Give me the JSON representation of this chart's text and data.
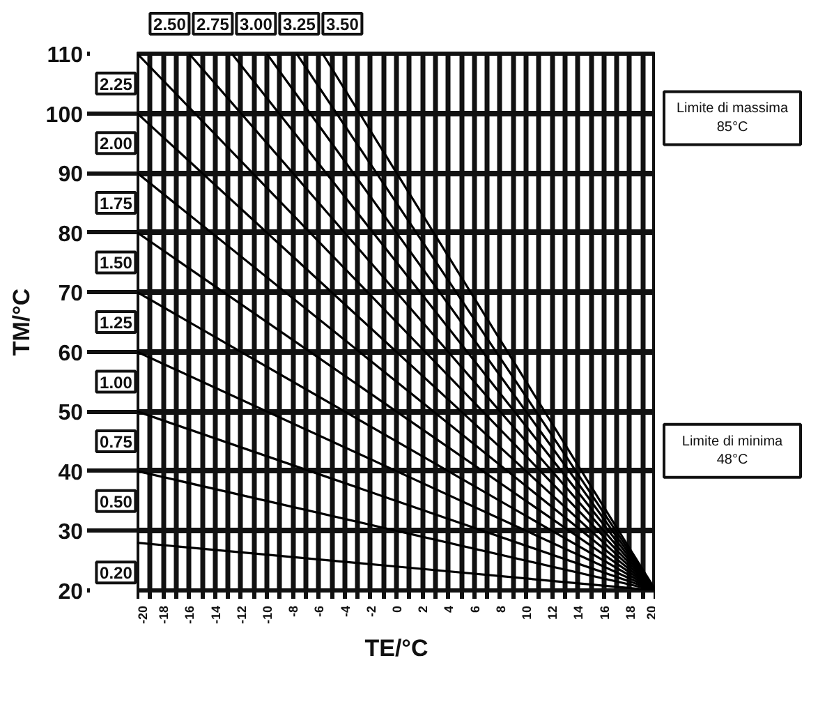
{
  "chart_data": {
    "type": "line",
    "xlabel": "TE/°C",
    "ylabel": "TM/°C",
    "xlim": [
      -20,
      20
    ],
    "ylim": [
      20,
      110
    ],
    "xticks": [
      -20,
      {
        "value": -19,
        "label": null
      },
      -18,
      {
        "value": -17,
        "label": null
      },
      -16,
      {
        "value": -15,
        "label": null
      },
      -14,
      {
        "value": -13,
        "label": null
      },
      -12,
      {
        "value": -11,
        "label": null
      },
      -10,
      {
        "value": -9,
        "label": null
      },
      -8,
      {
        "value": -7,
        "label": null
      },
      -6,
      {
        "value": -5,
        "label": null
      },
      -4,
      {
        "value": -3,
        "label": null
      },
      -2,
      {
        "value": -1,
        "label": null
      },
      0,
      {
        "value": 1,
        "label": null
      },
      2,
      {
        "value": 3,
        "label": null
      },
      4,
      {
        "value": 5,
        "label": null
      },
      6,
      {
        "value": 7,
        "label": null
      },
      8,
      {
        "value": 9,
        "label": null
      },
      10,
      {
        "value": 11,
        "label": null
      },
      12,
      {
        "value": 13,
        "label": null
      },
      14,
      {
        "value": 15,
        "label": null
      },
      16,
      {
        "value": 17,
        "label": null
      },
      18,
      {
        "value": 19,
        "label": null
      },
      20
    ],
    "yticks": [
      20,
      30,
      40,
      50,
      60,
      70,
      80,
      90,
      100,
      110
    ],
    "grid": true,
    "marker": "none",
    "line_style": "solid",
    "series": [
      {
        "name": "0.20",
        "color": "#000000",
        "x": [
          -20,
          0,
          20
        ],
        "values": [
          28,
          24,
          20
        ]
      },
      {
        "name": "0.50",
        "color": "#000000",
        "x": [
          -20,
          0,
          20
        ],
        "values": [
          40,
          30,
          20
        ]
      },
      {
        "name": "0.75",
        "color": "#000000",
        "x": [
          -20,
          0,
          20
        ],
        "values": [
          50,
          35,
          20
        ]
      },
      {
        "name": "1.00",
        "color": "#000000",
        "x": [
          -20,
          0,
          20
        ],
        "values": [
          60,
          40,
          20
        ]
      },
      {
        "name": "1.25",
        "color": "#000000",
        "x": [
          -20,
          0,
          20
        ],
        "values": [
          70,
          45,
          20
        ]
      },
      {
        "name": "1.50",
        "color": "#000000",
        "x": [
          -20,
          0,
          20
        ],
        "values": [
          80,
          50,
          20
        ]
      },
      {
        "name": "1.75",
        "color": "#000000",
        "x": [
          -20,
          0,
          20
        ],
        "values": [
          90,
          55,
          20
        ]
      },
      {
        "name": "2.00",
        "color": "#000000",
        "x": [
          -20,
          0,
          20
        ],
        "values": [
          100,
          60,
          20
        ]
      },
      {
        "name": "2.25",
        "color": "#000000",
        "x": [
          -20,
          0,
          20
        ],
        "values": [
          110,
          65,
          20
        ]
      },
      {
        "name": "2.50",
        "color": "#000000",
        "x": [
          -16,
          20
        ],
        "values": [
          110,
          20
        ]
      },
      {
        "name": "2.75",
        "color": "#000000",
        "x": [
          -12.7,
          20
        ],
        "values": [
          110,
          20
        ]
      },
      {
        "name": "3.00",
        "color": "#000000",
        "x": [
          -10,
          20
        ],
        "values": [
          110,
          20
        ]
      },
      {
        "name": "3.25",
        "color": "#000000",
        "x": [
          -7.7,
          20
        ],
        "values": [
          110,
          20
        ]
      },
      {
        "name": "3.50",
        "color": "#000000",
        "x": [
          -5.7,
          20
        ],
        "values": [
          110,
          20
        ]
      }
    ],
    "annotations": [
      "Limite di massima\n85°C",
      "Limite di minima\n48°C"
    ]
  }
}
